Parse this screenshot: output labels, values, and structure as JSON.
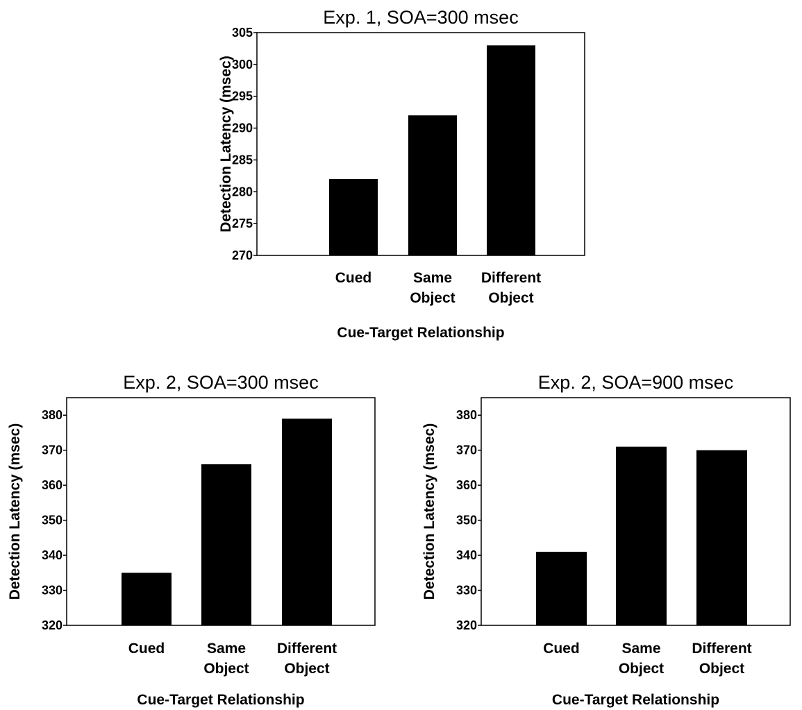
{
  "chart_data": [
    {
      "type": "bar",
      "title": "Exp. 1, SOA=300 msec",
      "xlabel": "Cue-Target Relationship",
      "ylabel": "Detection Latency (msec)",
      "categories": [
        [
          "Cued"
        ],
        [
          "Same",
          "Object"
        ],
        [
          "Different",
          "Object"
        ]
      ],
      "values": [
        282,
        292,
        303
      ],
      "ylim": [
        270,
        305
      ],
      "yticks": [
        270,
        275,
        280,
        285,
        290,
        295,
        300,
        305
      ],
      "grid": false,
      "bar_color": "#000000"
    },
    {
      "type": "bar",
      "title": "Exp. 2, SOA=300 msec",
      "xlabel": "Cue-Target Relationship",
      "ylabel": "Detection Latency (msec)",
      "categories": [
        [
          "Cued"
        ],
        [
          "Same",
          "Object"
        ],
        [
          "Different",
          "Object"
        ]
      ],
      "values": [
        335,
        366,
        379
      ],
      "ylim": [
        320,
        385
      ],
      "yticks": [
        320,
        330,
        340,
        350,
        360,
        370,
        380
      ],
      "grid": false,
      "bar_color": "#000000"
    },
    {
      "type": "bar",
      "title": "Exp. 2, SOA=900 msec",
      "xlabel": "Cue-Target Relationship",
      "ylabel": "Detection Latency (msec)",
      "categories": [
        [
          "Cued"
        ],
        [
          "Same",
          "Object"
        ],
        [
          "Different",
          "Object"
        ]
      ],
      "values": [
        341,
        371,
        370
      ],
      "ylim": [
        320,
        385
      ],
      "yticks": [
        320,
        330,
        340,
        350,
        360,
        370,
        380
      ],
      "grid": false,
      "bar_color": "#000000"
    }
  ]
}
